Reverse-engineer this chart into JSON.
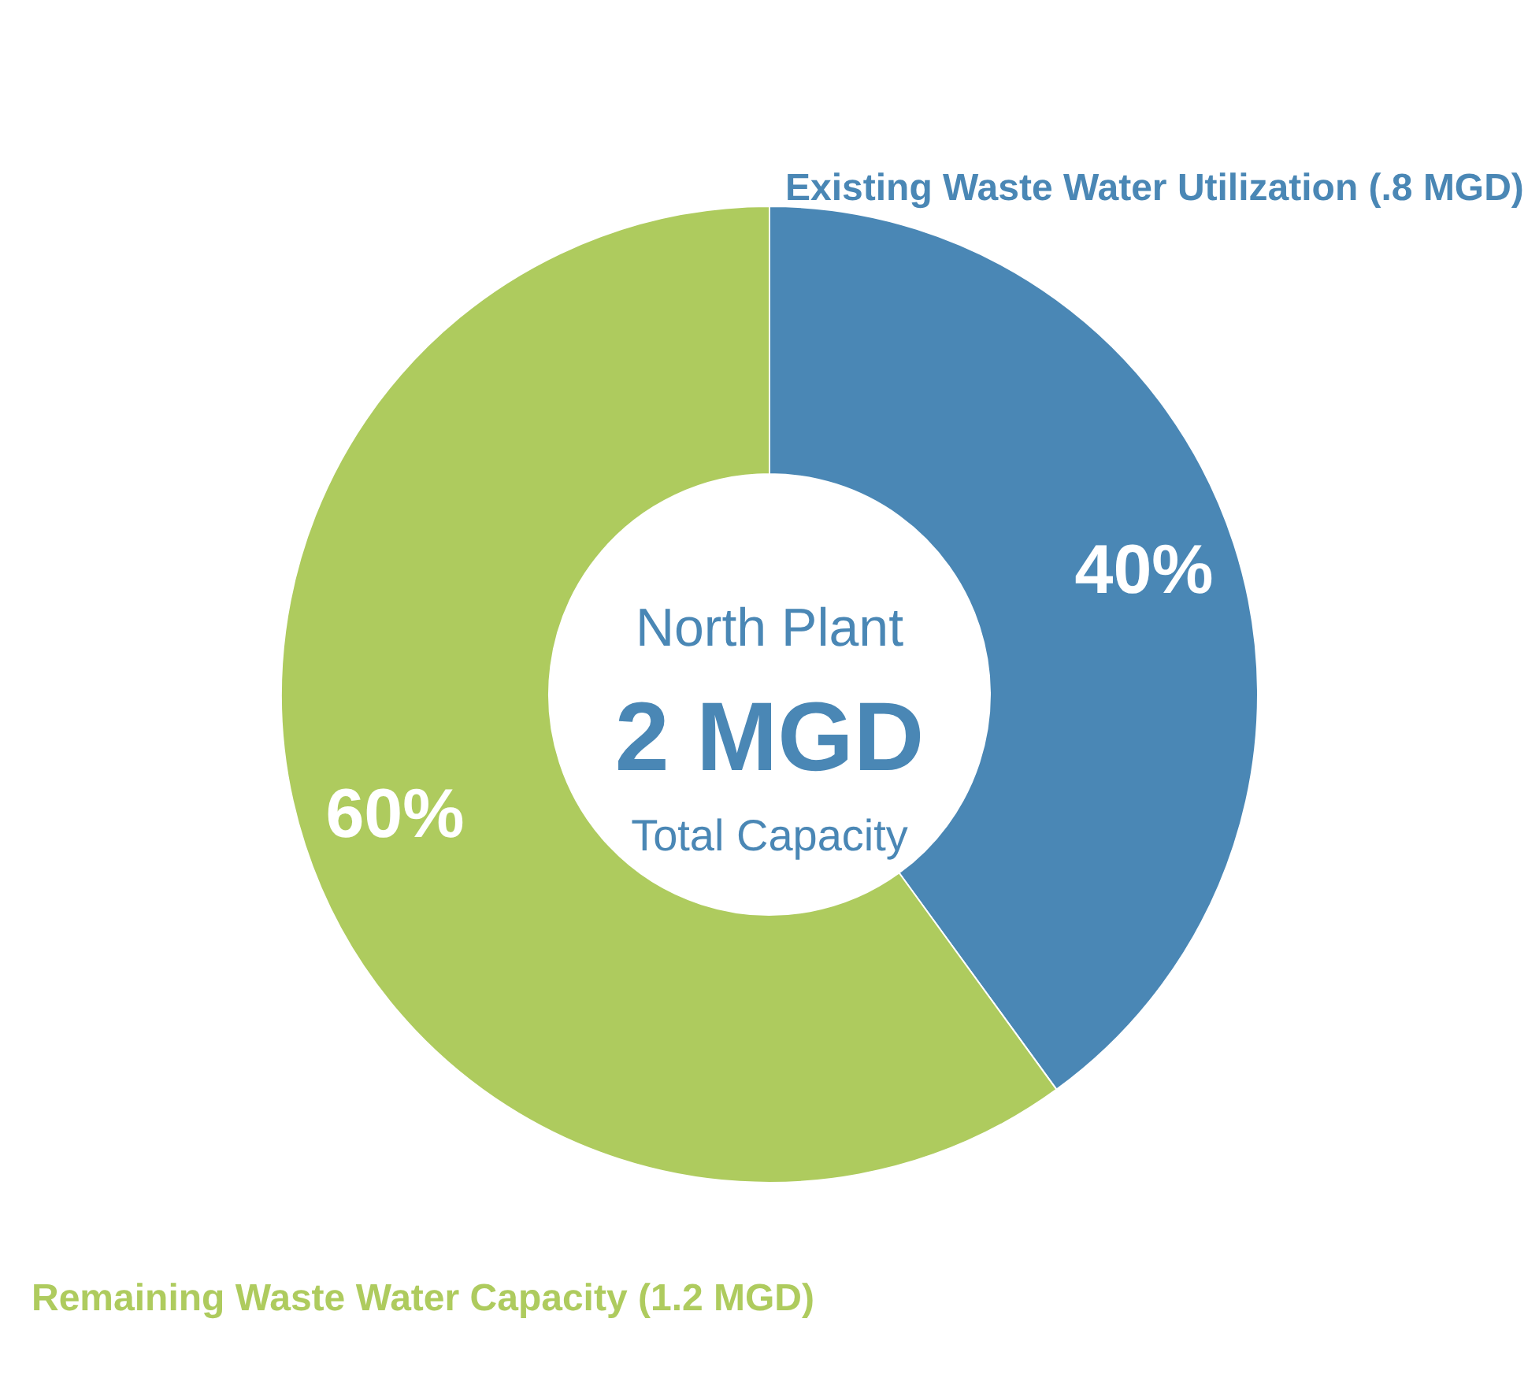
{
  "chart_data": {
    "type": "donut",
    "categories": [
      "Existing Waste Water Utilization (.8 MGD)",
      "Remaining Waste Water Capacity (1.2 MGD)"
    ],
    "values": [
      40,
      60
    ],
    "colors": [
      "#4a87b5",
      "#aecb5e"
    ],
    "value_labels": [
      "40%",
      "60%"
    ],
    "annotations": [
      "North Plant",
      "2 MGD",
      "Total Capacity"
    ]
  }
}
